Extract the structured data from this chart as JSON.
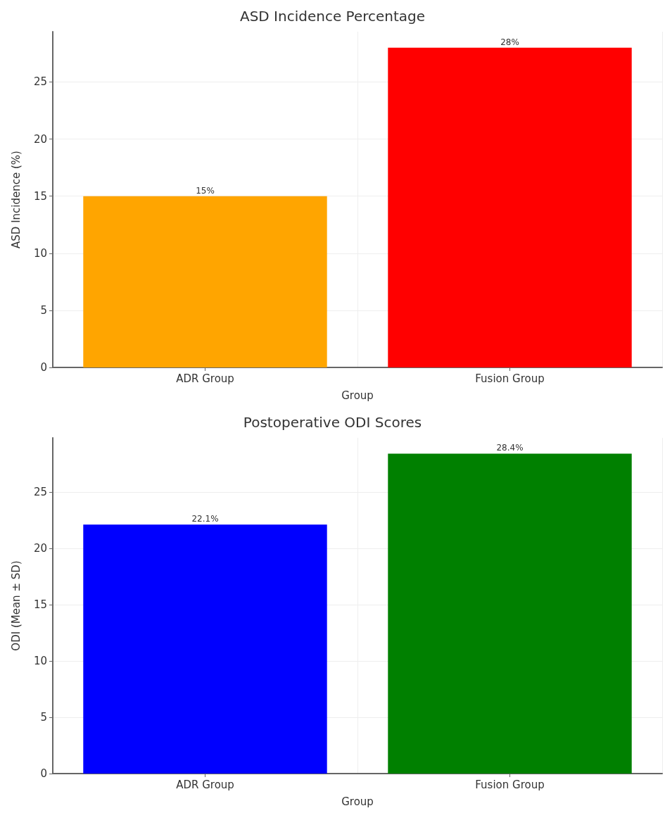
{
  "chart_data": [
    {
      "type": "bar",
      "title": "ASD Incidence Percentage",
      "xlabel": "Group",
      "ylabel": "ASD Incidence (%)",
      "categories": [
        "ADR Group",
        "Fusion Group"
      ],
      "values": [
        15,
        28
      ],
      "colors": [
        "#ffa500",
        "#ff0000"
      ],
      "value_labels": [
        "15%",
        "28%"
      ],
      "ylim": [
        0,
        29.4
      ],
      "yticks": [
        0,
        5,
        10,
        15,
        20,
        25
      ],
      "grid": true
    },
    {
      "type": "bar",
      "title": "Postoperative ODI Scores",
      "xlabel": "Group",
      "ylabel": "ODI (Mean ± SD)",
      "categories": [
        "ADR Group",
        "Fusion Group"
      ],
      "values": [
        22.1,
        28.4
      ],
      "colors": [
        "#0000ff",
        "#008000"
      ],
      "value_labels": [
        "22.1%",
        "28.4%"
      ],
      "ylim": [
        0,
        29.8
      ],
      "yticks": [
        0,
        5,
        10,
        15,
        20,
        25
      ],
      "grid": true
    }
  ]
}
